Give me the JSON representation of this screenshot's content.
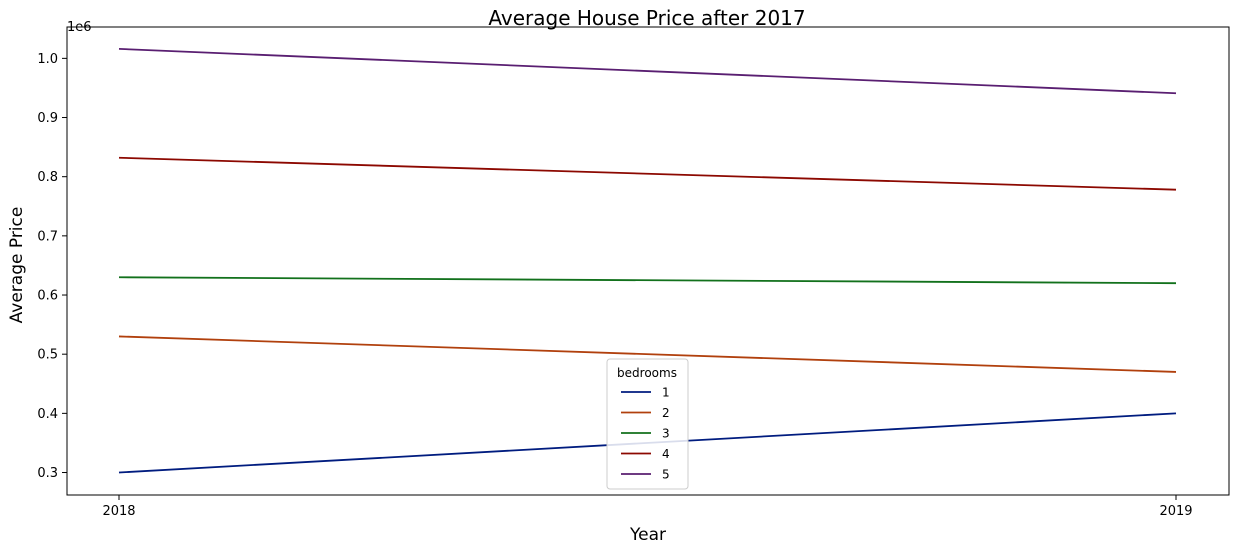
{
  "chart_data": {
    "type": "line",
    "title": "Average House Price after 2017",
    "xlabel": "Year",
    "ylabel": "Average Price",
    "y_scale_label": "1e6",
    "categories": [
      "2018",
      "2019"
    ],
    "x": [
      2018,
      2019
    ],
    "yticks": [
      0.3,
      0.4,
      0.5,
      0.6,
      0.7,
      0.8,
      0.9,
      1.0
    ],
    "ytick_labels": [
      "0.3",
      "0.4",
      "0.5",
      "0.6",
      "0.7",
      "0.8",
      "0.9",
      "1.0"
    ],
    "ylim": [
      262000,
      1053000
    ],
    "grid": false,
    "legend": {
      "title": "bedrooms",
      "placement": "lower center"
    },
    "series": [
      {
        "name": "1",
        "color": "#001c7f",
        "values": [
          300000,
          400000
        ]
      },
      {
        "name": "2",
        "color": "#b1400d",
        "values": [
          530000,
          470000
        ]
      },
      {
        "name": "3",
        "color": "#12711c",
        "values": [
          630000,
          620000
        ]
      },
      {
        "name": "4",
        "color": "#8c0800",
        "values": [
          832000,
          778000
        ]
      },
      {
        "name": "5",
        "color": "#591e71",
        "values": [
          1016000,
          941000
        ]
      }
    ]
  }
}
